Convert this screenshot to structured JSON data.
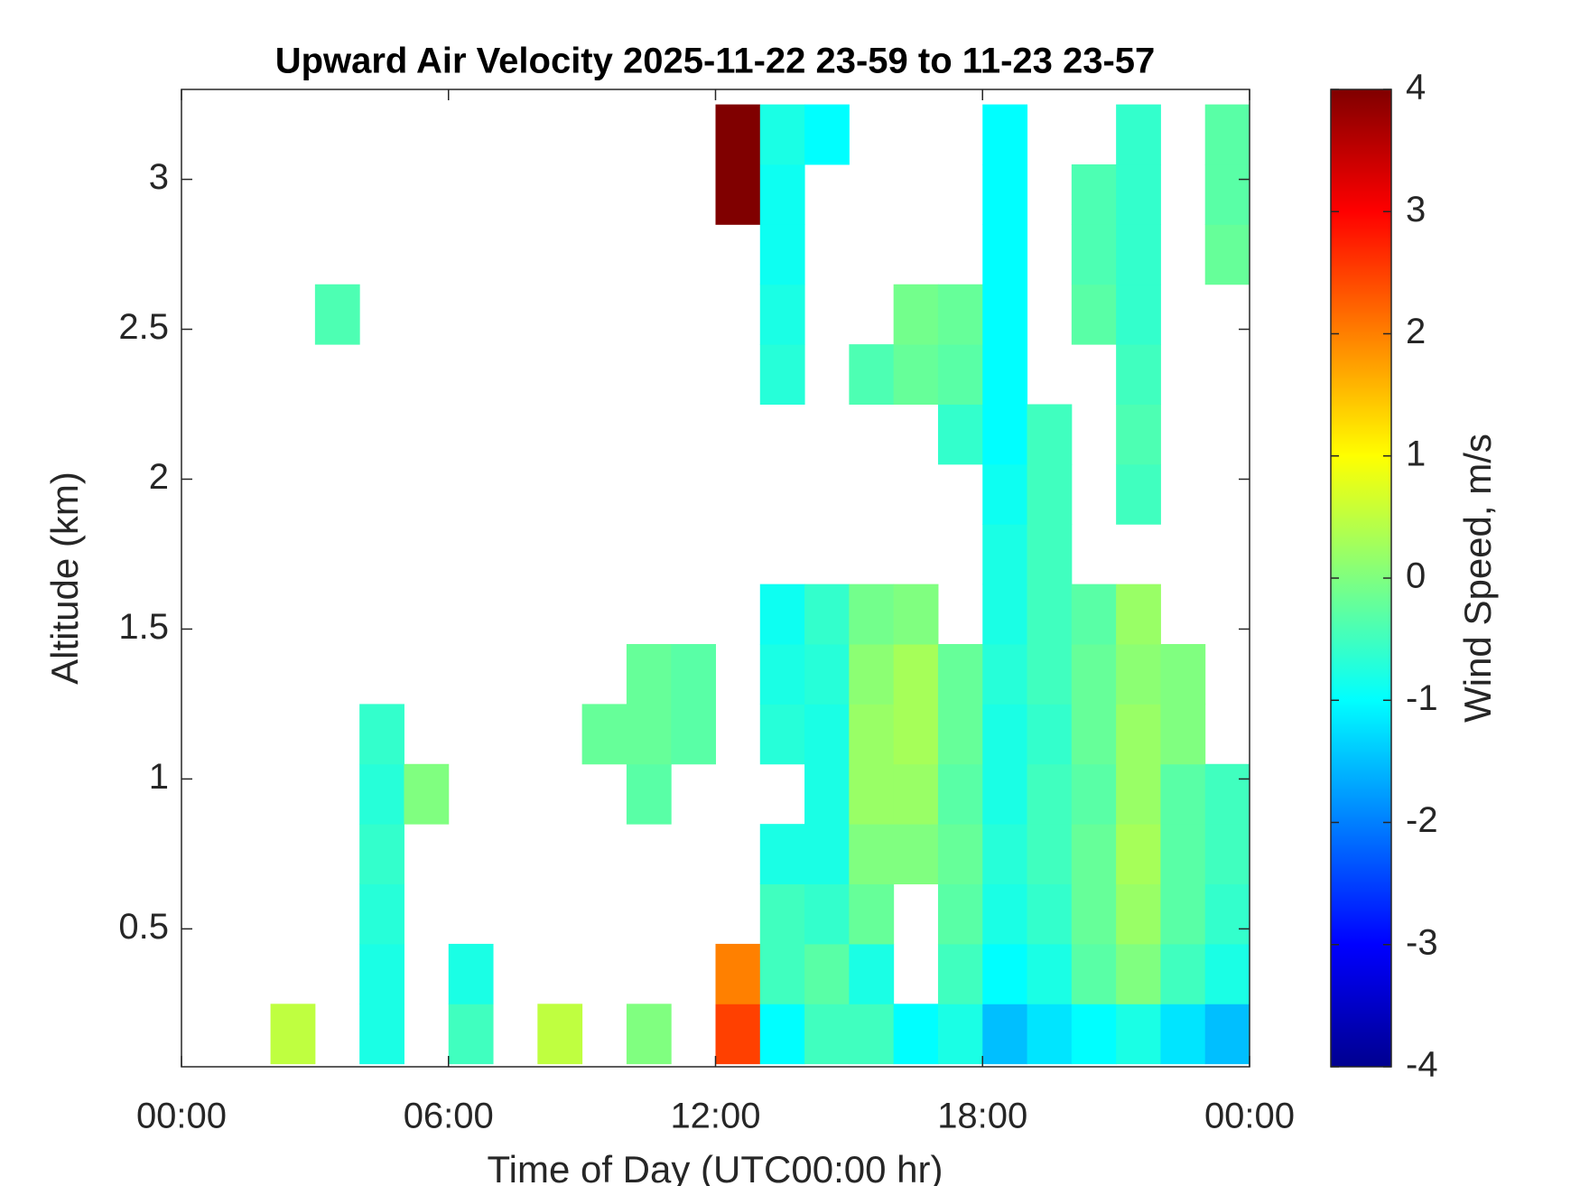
{
  "chart_data": {
    "type": "heatmap",
    "title": "Upward Air Velocity 2025-11-22 23-59 to 11-23 23-57",
    "x_label": "Time of Day (UTC00:00 hr)",
    "y_label": "Altitude (km)",
    "colorbar_label": "Wind Speed, m/s",
    "colormap": "jet",
    "x": [
      0.5,
      1.5,
      2.5,
      3.5,
      4.5,
      5.5,
      6.5,
      7.5,
      8.5,
      9.5,
      10.5,
      11.5,
      12.5,
      13.5,
      14.5,
      15.5,
      16.5,
      17.5,
      18.5,
      19.5,
      20.5,
      21.5,
      22.5,
      23.5
    ],
    "y": [
      0.15,
      0.35,
      0.55,
      0.75,
      0.95,
      1.15,
      1.35,
      1.55,
      1.75,
      1.95,
      2.15,
      2.35,
      2.55,
      2.75,
      2.95,
      3.15
    ],
    "z": [
      [
        null,
        null,
        0.5,
        null,
        -0.8,
        null,
        -0.5,
        null,
        0.5,
        null,
        0,
        null,
        2.5,
        -1,
        -0.5,
        -0.5,
        -1,
        -0.8,
        -1.5,
        -1.2,
        -1,
        -0.8,
        -1.2,
        -1.5
      ],
      [
        null,
        null,
        null,
        null,
        -0.8,
        null,
        -0.8,
        null,
        null,
        null,
        null,
        null,
        2,
        -0.5,
        -0.3,
        -0.8,
        null,
        -0.5,
        -1,
        -0.8,
        -0.3,
        0,
        -0.5,
        -0.8
      ],
      [
        null,
        null,
        null,
        null,
        -0.7,
        null,
        null,
        null,
        null,
        null,
        null,
        null,
        null,
        -0.5,
        -0.6,
        -0.2,
        null,
        -0.3,
        -0.8,
        -0.6,
        -0.2,
        0.2,
        -0.3,
        -0.6
      ],
      [
        null,
        null,
        null,
        null,
        -0.6,
        null,
        null,
        null,
        null,
        null,
        null,
        null,
        null,
        -0.8,
        -0.8,
        0,
        0,
        -0.2,
        -0.7,
        -0.5,
        -0.2,
        0.3,
        -0.3,
        -0.5
      ],
      [
        null,
        null,
        null,
        null,
        -0.7,
        0,
        null,
        null,
        null,
        null,
        -0.3,
        null,
        null,
        null,
        -0.8,
        0.2,
        0.2,
        -0.3,
        -0.8,
        -0.5,
        -0.3,
        0.2,
        -0.3,
        -0.5
      ],
      [
        null,
        null,
        null,
        null,
        -0.6,
        null,
        null,
        null,
        null,
        -0.2,
        -0.2,
        -0.3,
        null,
        -0.7,
        -0.8,
        0.2,
        0.3,
        -0.2,
        -0.8,
        -0.6,
        -0.2,
        0.2,
        0,
        null
      ],
      [
        null,
        null,
        null,
        null,
        null,
        null,
        null,
        null,
        null,
        null,
        -0.2,
        -0.3,
        null,
        -0.8,
        -0.7,
        0.1,
        0.3,
        -0.2,
        -0.7,
        -0.5,
        -0.2,
        0.1,
        0,
        null
      ],
      [
        null,
        null,
        null,
        null,
        null,
        null,
        null,
        null,
        null,
        null,
        null,
        null,
        null,
        -0.9,
        -0.6,
        -0.1,
        0,
        null,
        -0.8,
        -0.5,
        -0.3,
        0.2,
        null,
        null
      ],
      [
        null,
        null,
        null,
        null,
        null,
        null,
        null,
        null,
        null,
        null,
        null,
        null,
        null,
        null,
        null,
        null,
        null,
        null,
        -0.8,
        -0.5,
        null,
        null,
        null,
        null
      ],
      [
        null,
        null,
        null,
        null,
        null,
        null,
        null,
        null,
        null,
        null,
        null,
        null,
        null,
        null,
        null,
        null,
        null,
        null,
        -0.9,
        -0.5,
        null,
        -0.5,
        null,
        null
      ],
      [
        null,
        null,
        null,
        null,
        null,
        null,
        null,
        null,
        null,
        null,
        null,
        null,
        null,
        null,
        null,
        null,
        null,
        -0.6,
        -1,
        -0.5,
        null,
        -0.4,
        null,
        null
      ],
      [
        null,
        null,
        null,
        null,
        null,
        null,
        null,
        null,
        null,
        null,
        null,
        null,
        null,
        -0.7,
        null,
        -0.4,
        -0.2,
        -0.3,
        -1,
        null,
        null,
        -0.5,
        null,
        null
      ],
      [
        null,
        null,
        null,
        -0.4,
        null,
        null,
        null,
        null,
        null,
        null,
        null,
        null,
        null,
        -0.8,
        null,
        null,
        -0.1,
        -0.2,
        -1,
        null,
        -0.3,
        -0.6,
        null,
        null
      ],
      [
        null,
        null,
        null,
        null,
        null,
        null,
        null,
        null,
        null,
        null,
        null,
        null,
        null,
        -0.9,
        null,
        null,
        null,
        null,
        -1,
        null,
        -0.4,
        -0.6,
        null,
        -0.2
      ],
      [
        null,
        null,
        null,
        null,
        null,
        null,
        null,
        null,
        null,
        null,
        null,
        null,
        4,
        -0.9,
        null,
        null,
        null,
        null,
        -1,
        null,
        -0.4,
        -0.6,
        null,
        -0.3
      ],
      [
        null,
        null,
        null,
        null,
        null,
        null,
        null,
        null,
        null,
        null,
        null,
        null,
        4,
        -0.8,
        -1,
        null,
        null,
        null,
        -1,
        null,
        null,
        -0.6,
        null,
        -0.3
      ]
    ],
    "xlim": [
      0,
      24
    ],
    "xticks": [
      {
        "value": 0,
        "label": "00:00"
      },
      {
        "value": 6,
        "label": "06:00"
      },
      {
        "value": 12,
        "label": "12:00"
      },
      {
        "value": 18,
        "label": "18:00"
      },
      {
        "value": 24,
        "label": "00:00"
      }
    ],
    "ylim": [
      0.04,
      3.3
    ],
    "yticks": [
      0.5,
      1,
      1.5,
      2,
      2.5,
      3
    ],
    "clim": [
      -4,
      4
    ],
    "cticks": [
      -4,
      -3,
      -2,
      -1,
      0,
      1,
      2,
      3,
      4
    ]
  }
}
